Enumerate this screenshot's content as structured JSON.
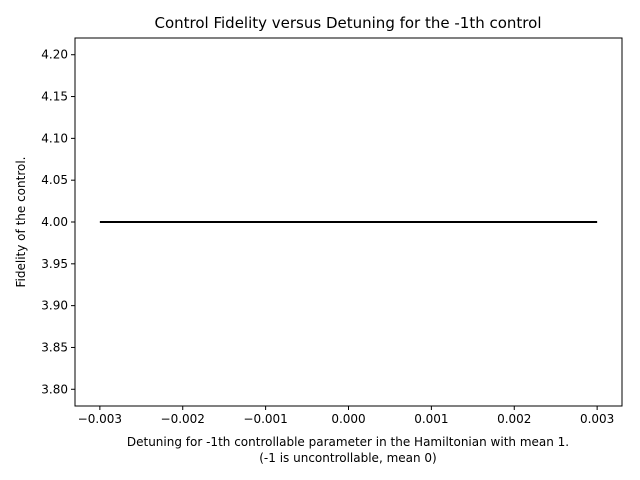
{
  "chart_data": {
    "type": "line",
    "title": "Control Fidelity versus Detuning for the -1th control",
    "xlabel": "Detuning for -1th controllable parameter in the Hamiltonian with mean 1.",
    "xlabel2": "(-1 is uncontrollable, mean 0)",
    "ylabel": "Fidelity of the control.",
    "xlim": [
      -0.0033,
      0.0033
    ],
    "ylim": [
      3.78,
      4.22
    ],
    "xticks": [
      -0.003,
      -0.002,
      -0.001,
      0.0,
      0.001,
      0.002,
      0.003
    ],
    "xtick_labels": [
      "−0.003",
      "−0.002",
      "−0.001",
      "0.000",
      "0.001",
      "0.002",
      "0.003"
    ],
    "yticks": [
      3.8,
      3.85,
      3.9,
      3.95,
      4.0,
      4.05,
      4.1,
      4.15,
      4.2
    ],
    "ytick_labels": [
      "3.80",
      "3.85",
      "3.90",
      "3.95",
      "4.00",
      "4.05",
      "4.10",
      "4.15",
      "4.20"
    ],
    "grid": false,
    "series": [
      {
        "color": "#000000",
        "x": [
          -0.003,
          0.003
        ],
        "y": [
          4.0,
          4.0
        ]
      }
    ]
  }
}
